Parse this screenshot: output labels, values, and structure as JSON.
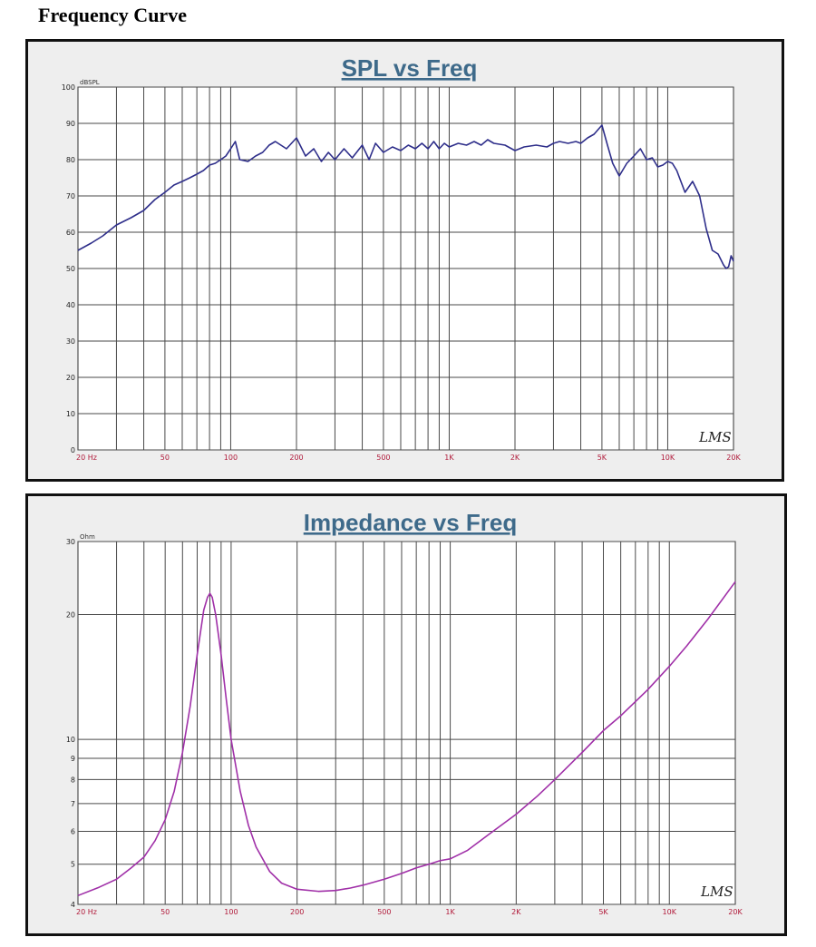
{
  "heading": "Frequency Curve",
  "colors": {
    "spl_line": "#2e2e8a",
    "impedance_line": "#a030a8",
    "title": "#3e6a8a",
    "tick_label": "#b11a3a",
    "grid": "#4a4a4a",
    "panel_bg": "#eeeeee",
    "plot_bg": "#ffffff"
  },
  "chart_data": [
    {
      "type": "line",
      "title": "SPL vs Freq",
      "ylabel": "dBSPL",
      "xscale": "log",
      "xlim": [
        20,
        20000
      ],
      "ylim": [
        0,
        100
      ],
      "grid": true,
      "logo": "LMS",
      "x_ticks": [
        {
          "value": 20,
          "label": "20  Hz"
        },
        {
          "value": 50,
          "label": "50"
        },
        {
          "value": 100,
          "label": "100"
        },
        {
          "value": 200,
          "label": "200"
        },
        {
          "value": 500,
          "label": "500"
        },
        {
          "value": 1000,
          "label": "1K"
        },
        {
          "value": 2000,
          "label": "2K"
        },
        {
          "value": 5000,
          "label": "5K"
        },
        {
          "value": 10000,
          "label": "10K"
        },
        {
          "value": 20000,
          "label": "20K"
        }
      ],
      "y_ticks": [
        {
          "value": 0,
          "label": "0"
        },
        {
          "value": 10,
          "label": "10"
        },
        {
          "value": 20,
          "label": "20"
        },
        {
          "value": 30,
          "label": "30"
        },
        {
          "value": 40,
          "label": "40"
        },
        {
          "value": 50,
          "label": "50"
        },
        {
          "value": 60,
          "label": "60"
        },
        {
          "value": 70,
          "label": "70"
        },
        {
          "value": 80,
          "label": "80"
        },
        {
          "value": 90,
          "label": "90"
        },
        {
          "value": 100,
          "label": "100"
        }
      ],
      "x": [
        20,
        23,
        26,
        30,
        35,
        40,
        45,
        50,
        55,
        60,
        65,
        70,
        75,
        80,
        85,
        90,
        95,
        100,
        105,
        110,
        120,
        130,
        140,
        150,
        160,
        180,
        200,
        220,
        240,
        260,
        280,
        300,
        330,
        360,
        400,
        430,
        460,
        500,
        550,
        600,
        650,
        700,
        750,
        800,
        850,
        900,
        950,
        1000,
        1100,
        1200,
        1300,
        1400,
        1500,
        1600,
        1800,
        2000,
        2200,
        2500,
        2800,
        3000,
        3200,
        3500,
        3800,
        4000,
        4300,
        4600,
        5000,
        5300,
        5600,
        6000,
        6500,
        7000,
        7500,
        8000,
        8500,
        9000,
        9500,
        10000,
        10500,
        11000,
        12000,
        13000,
        13500,
        14000,
        15000,
        16000,
        17000,
        18000,
        18500,
        19000,
        19500,
        20000
      ],
      "series": [
        {
          "values": [
            55,
            57,
            59,
            62,
            64,
            66,
            69,
            71,
            73,
            74,
            75,
            76,
            77,
            78.5,
            79,
            80,
            81,
            83,
            85,
            80,
            79.5,
            81,
            82,
            84,
            85,
            83,
            86,
            81,
            83,
            79.5,
            82,
            80,
            83,
            80.5,
            84,
            80,
            84.5,
            82,
            83.5,
            82.5,
            84,
            83,
            84.5,
            83,
            85,
            83,
            84.5,
            83.5,
            84.5,
            84,
            85,
            84,
            85.5,
            84.5,
            84,
            82.5,
            83.5,
            84,
            83.5,
            84.5,
            85,
            84.5,
            85,
            84.5,
            86,
            87,
            89.5,
            84,
            79,
            75.5,
            79,
            81,
            83,
            80,
            80.5,
            78,
            78.5,
            79.5,
            79,
            77,
            71,
            74,
            72,
            70,
            61,
            55,
            54,
            51,
            50,
            50.5,
            53.5,
            52
          ]
        }
      ]
    },
    {
      "type": "line",
      "title": "Impedance vs Freq",
      "ylabel": "Ohm",
      "xscale": "log",
      "yscale": "log",
      "xlim": [
        20,
        20000
      ],
      "ylim": [
        4,
        30
      ],
      "grid": true,
      "logo": "LMS",
      "x_ticks": [
        {
          "value": 20,
          "label": "20  Hz"
        },
        {
          "value": 50,
          "label": "50"
        },
        {
          "value": 100,
          "label": "100"
        },
        {
          "value": 200,
          "label": "200"
        },
        {
          "value": 500,
          "label": "500"
        },
        {
          "value": 1000,
          "label": "1K"
        },
        {
          "value": 2000,
          "label": "2K"
        },
        {
          "value": 5000,
          "label": "5K"
        },
        {
          "value": 10000,
          "label": "10K"
        },
        {
          "value": 20000,
          "label": "20K"
        }
      ],
      "y_ticks": [
        {
          "value": 4,
          "label": "4"
        },
        {
          "value": 5,
          "label": "5"
        },
        {
          "value": 6,
          "label": "6"
        },
        {
          "value": 7,
          "label": "7"
        },
        {
          "value": 8,
          "label": "8"
        },
        {
          "value": 9,
          "label": "9"
        },
        {
          "value": 10,
          "label": "10"
        },
        {
          "value": 20,
          "label": "20"
        },
        {
          "value": 30,
          "label": "30"
        }
      ],
      "x": [
        20,
        25,
        30,
        35,
        40,
        45,
        50,
        55,
        60,
        65,
        70,
        75,
        78,
        80,
        82,
        85,
        90,
        95,
        100,
        110,
        120,
        130,
        150,
        170,
        200,
        250,
        300,
        350,
        400,
        500,
        600,
        700,
        800,
        900,
        1000,
        1200,
        1500,
        2000,
        2500,
        3000,
        4000,
        5000,
        6000,
        8000,
        10000,
        12000,
        15000,
        20000
      ],
      "series": [
        {
          "values": [
            4.2,
            4.4,
            4.6,
            4.9,
            5.2,
            5.7,
            6.4,
            7.5,
            9.3,
            12.0,
            16.0,
            20.5,
            22.0,
            22.5,
            22.0,
            20.0,
            16.0,
            12.5,
            10.0,
            7.5,
            6.2,
            5.5,
            4.8,
            4.5,
            4.35,
            4.3,
            4.32,
            4.38,
            4.45,
            4.6,
            4.75,
            4.9,
            5.0,
            5.1,
            5.15,
            5.4,
            5.9,
            6.6,
            7.3,
            8.0,
            9.3,
            10.5,
            11.4,
            13.2,
            15.0,
            16.8,
            19.5,
            24.0
          ]
        }
      ]
    }
  ]
}
